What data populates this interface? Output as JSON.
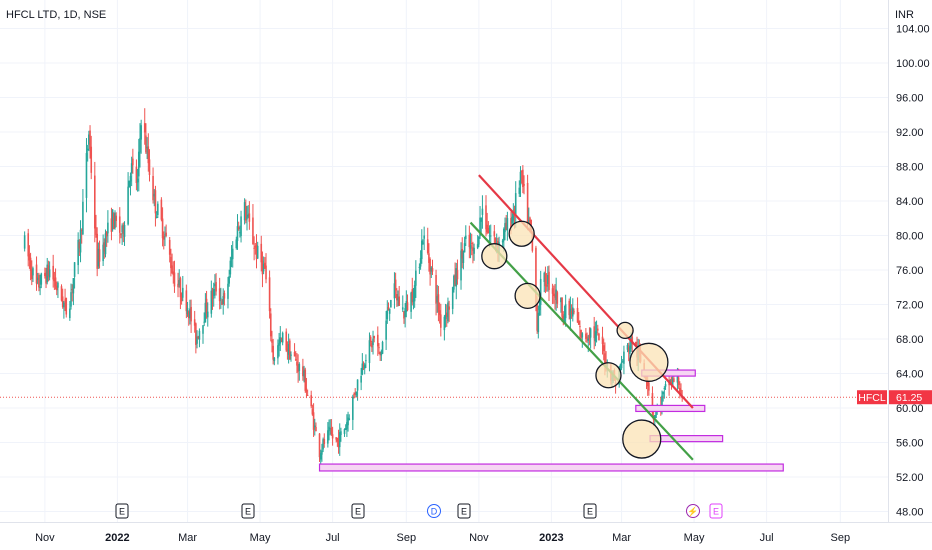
{
  "header": {
    "title": "HFCL LTD, 1D, NSE",
    "currency": "INR"
  },
  "price_tag": {
    "symbol": "HFCL",
    "price": "61.25"
  },
  "colors": {
    "up": "#26a69a",
    "down": "#ef5350",
    "resistance": "#e53946",
    "support": "#43a047",
    "zone": "#c22ce0",
    "zone_fill": "#f6d6f3",
    "circle_fill": "#fbe3b6",
    "tag_bg": "#f23645"
  },
  "events": [
    {
      "label": "E",
      "kind": "earnings"
    },
    {
      "label": "E",
      "kind": "earnings"
    },
    {
      "label": "E",
      "kind": "earnings"
    },
    {
      "label": "D",
      "kind": "dividend"
    },
    {
      "label": "E",
      "kind": "earnings"
    },
    {
      "label": "E",
      "kind": "earnings"
    },
    {
      "label": "⚡",
      "kind": "split"
    },
    {
      "label": "E",
      "kind": "earnings-upcoming"
    }
  ],
  "chart_data": {
    "type": "candlestick",
    "title": "HFCL LTD, 1D, NSE",
    "y_unit": "INR",
    "ylim": [
      46,
      105
    ],
    "y_ticks": [
      "104.00",
      "100.00",
      "96.00",
      "92.00",
      "88.00",
      "84.00",
      "80.00",
      "76.00",
      "72.00",
      "68.00",
      "64.00",
      "60.00",
      "56.00",
      "52.00",
      "48.00"
    ],
    "x_ticks": [
      "Nov",
      "2022",
      "Mar",
      "May",
      "Jul",
      "Sep",
      "Nov",
      "2023",
      "Mar",
      "May",
      "Jul",
      "Sep"
    ],
    "x_range": [
      "2021-10-15",
      "2023-09-30"
    ],
    "price_path": [
      [
        "2021-10-15",
        79
      ],
      [
        "2021-10-25",
        74
      ],
      [
        "2021-11-05",
        76
      ],
      [
        "2021-11-20",
        71
      ],
      [
        "2021-12-01",
        80
      ],
      [
        "2021-12-08",
        92
      ],
      [
        "2021-12-15",
        77
      ],
      [
        "2021-12-28",
        82
      ],
      [
        "2022-01-05",
        80
      ],
      [
        "2022-01-12",
        88
      ],
      [
        "2022-01-18",
        86
      ],
      [
        "2022-01-21",
        94
      ],
      [
        "2022-02-01",
        84
      ],
      [
        "2022-02-10",
        80
      ],
      [
        "2022-02-18",
        75
      ],
      [
        "2022-03-01",
        72
      ],
      [
        "2022-03-08",
        68
      ],
      [
        "2022-03-15",
        71
      ],
      [
        "2022-03-25",
        74
      ],
      [
        "2022-04-01",
        72
      ],
      [
        "2022-04-10",
        80
      ],
      [
        "2022-04-18",
        83
      ],
      [
        "2022-04-28",
        78
      ],
      [
        "2022-05-05",
        76
      ],
      [
        "2022-05-12",
        66
      ],
      [
        "2022-05-20",
        68
      ],
      [
        "2022-05-28",
        66
      ],
      [
        "2022-06-06",
        64
      ],
      [
        "2022-06-14",
        59
      ],
      [
        "2022-06-20",
        55
      ],
      [
        "2022-06-28",
        57
      ],
      [
        "2022-07-05",
        56
      ],
      [
        "2022-07-12",
        58
      ],
      [
        "2022-07-20",
        62
      ],
      [
        "2022-07-28",
        66
      ],
      [
        "2022-08-05",
        68
      ],
      [
        "2022-08-10",
        66
      ],
      [
        "2022-08-20",
        74
      ],
      [
        "2022-08-30",
        71
      ],
      [
        "2022-09-08",
        74
      ],
      [
        "2022-09-15",
        80
      ],
      [
        "2022-09-22",
        76
      ],
      [
        "2022-09-30",
        70
      ],
      [
        "2022-10-07",
        72
      ],
      [
        "2022-10-14",
        76
      ],
      [
        "2022-10-21",
        79
      ],
      [
        "2022-10-28",
        78
      ],
      [
        "2022-11-04",
        83
      ],
      [
        "2022-11-10",
        80
      ],
      [
        "2022-11-18",
        79
      ],
      [
        "2022-11-25",
        81
      ],
      [
        "2022-12-01",
        83
      ],
      [
        "2022-12-06",
        87
      ],
      [
        "2022-12-12",
        82
      ],
      [
        "2022-12-15",
        80
      ],
      [
        "2022-12-20",
        70
      ],
      [
        "2022-12-23",
        74
      ],
      [
        "2022-12-28",
        75
      ],
      [
        "2023-01-05",
        73
      ],
      [
        "2023-01-12",
        71
      ],
      [
        "2023-01-20",
        71
      ],
      [
        "2023-01-27",
        68
      ],
      [
        "2023-02-03",
        69
      ],
      [
        "2023-02-10",
        68
      ],
      [
        "2023-02-17",
        65
      ],
      [
        "2023-02-24",
        63
      ],
      [
        "2023-03-03",
        66
      ],
      [
        "2023-03-10",
        68
      ],
      [
        "2023-03-15",
        66
      ],
      [
        "2023-03-22",
        64
      ],
      [
        "2023-03-28",
        59
      ],
      [
        "2023-04-04",
        61
      ],
      [
        "2023-04-10",
        63
      ],
      [
        "2023-04-18",
        63
      ],
      [
        "2023-04-21",
        61.25
      ]
    ],
    "annotations": {
      "resistance_line": [
        [
          "2022-11-01",
          87
        ],
        [
          "2023-04-30",
          60
        ]
      ],
      "support_line": [
        [
          "2022-10-25",
          81.5
        ],
        [
          "2023-04-30",
          54
        ]
      ],
      "zones": [
        {
          "from": "2022-06-20",
          "to": "2023-07-15",
          "low": 52.7,
          "high": 53.5
        },
        {
          "from": "2023-03-13",
          "to": "2023-05-10",
          "low": 59.6,
          "high": 60.3
        },
        {
          "from": "2023-03-25",
          "to": "2023-05-25",
          "low": 56.1,
          "high": 56.8
        },
        {
          "from": "2023-03-18",
          "to": "2023-05-02",
          "low": 63.7,
          "high": 64.4
        }
      ],
      "circles": [
        {
          "date": "2022-11-14",
          "price": 77.6,
          "size": "small"
        },
        {
          "date": "2022-12-07",
          "price": 80.2,
          "size": "small"
        },
        {
          "date": "2022-12-12",
          "price": 73.0,
          "size": "small"
        },
        {
          "date": "2023-02-18",
          "price": 63.8,
          "size": "small"
        },
        {
          "date": "2023-03-04",
          "price": 69.0,
          "size": "tiny"
        },
        {
          "date": "2023-03-24",
          "price": 65.3,
          "size": "large"
        },
        {
          "date": "2023-03-18",
          "price": 56.4,
          "size": "large"
        }
      ]
    },
    "last_price": 61.25
  }
}
